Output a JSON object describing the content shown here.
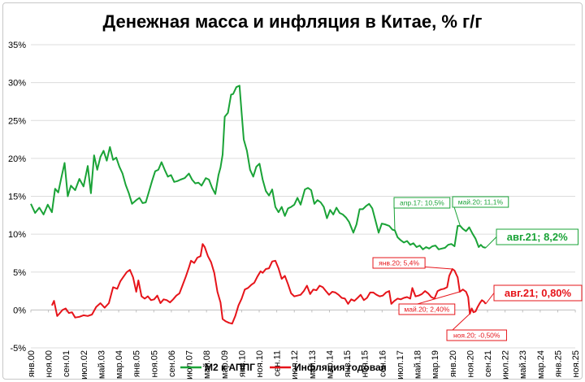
{
  "chart_data": {
    "type": "line",
    "title": "Денежная масса и инфляция в Китае, % г/г",
    "xlabel": "",
    "ylabel": "",
    "ylim": [
      -5,
      35
    ],
    "y_ticks": [
      "-5%",
      "0%",
      "5%",
      "10%",
      "15%",
      "20%",
      "25%",
      "30%",
      "35%"
    ],
    "x_ticks": [
      "янв.00",
      "ноя.00",
      "сен.01",
      "июл.02",
      "май.03",
      "мар.04",
      "янв.05",
      "ноя.05",
      "сен.06",
      "июл.07",
      "май.08",
      "мар.09",
      "янв.10",
      "ноя.10",
      "сен.11",
      "июл.12",
      "май.13",
      "мар.14",
      "янв.15",
      "ноя.15",
      "сен.16",
      "июл.17",
      "май.18",
      "мар.19",
      "янв.20",
      "ноя.20",
      "сен.21",
      "июл.22",
      "май.23",
      "мар.24",
      "янв.25",
      "ноя.25"
    ],
    "grid": true,
    "legend_position": "bottom",
    "series": [
      {
        "name": "М2 к АППГ",
        "color": "#1aa337",
        "points": [
          [
            2000.0,
            14.0
          ],
          [
            2000.2,
            12.8
          ],
          [
            2000.4,
            13.5
          ],
          [
            2000.6,
            12.6
          ],
          [
            2000.8,
            13.9
          ],
          [
            2001.0,
            12.9
          ],
          [
            2001.15,
            16.0
          ],
          [
            2001.3,
            15.5
          ],
          [
            2001.45,
            17.5
          ],
          [
            2001.6,
            19.4
          ],
          [
            2001.75,
            15.0
          ],
          [
            2001.9,
            16.4
          ],
          [
            2002.1,
            15.8
          ],
          [
            2002.3,
            17.3
          ],
          [
            2002.5,
            16.3
          ],
          [
            2002.7,
            19.0
          ],
          [
            2002.85,
            15.4
          ],
          [
            2003.0,
            20.4
          ],
          [
            2003.15,
            18.5
          ],
          [
            2003.3,
            20.2
          ],
          [
            2003.45,
            21.0
          ],
          [
            2003.6,
            19.7
          ],
          [
            2003.75,
            21.5
          ],
          [
            2003.9,
            19.8
          ],
          [
            2004.05,
            20.1
          ],
          [
            2004.2,
            18.9
          ],
          [
            2004.35,
            18.0
          ],
          [
            2004.5,
            16.5
          ],
          [
            2004.65,
            15.4
          ],
          [
            2004.8,
            14.0
          ],
          [
            2005.0,
            14.5
          ],
          [
            2005.15,
            14.8
          ],
          [
            2005.3,
            14.1
          ],
          [
            2005.45,
            14.2
          ],
          [
            2005.6,
            15.6
          ],
          [
            2005.75,
            17.0
          ],
          [
            2005.9,
            18.3
          ],
          [
            2006.05,
            18.5
          ],
          [
            2006.2,
            19.5
          ],
          [
            2006.35,
            18.5
          ],
          [
            2006.5,
            17.6
          ],
          [
            2006.65,
            17.8
          ],
          [
            2006.8,
            16.9
          ],
          [
            2006.95,
            17.0
          ],
          [
            2007.1,
            17.2
          ],
          [
            2007.3,
            17.4
          ],
          [
            2007.5,
            18.0
          ],
          [
            2007.65,
            17.2
          ],
          [
            2007.8,
            16.7
          ],
          [
            2007.95,
            16.8
          ],
          [
            2008.1,
            16.4
          ],
          [
            2008.3,
            17.4
          ],
          [
            2008.45,
            17.2
          ],
          [
            2008.6,
            16.1
          ],
          [
            2008.75,
            15.3
          ],
          [
            2008.9,
            17.8
          ],
          [
            2009.0,
            18.8
          ],
          [
            2009.1,
            20.5
          ],
          [
            2009.2,
            25.5
          ],
          [
            2009.35,
            26.0
          ],
          [
            2009.5,
            28.4
          ],
          [
            2009.6,
            28.5
          ],
          [
            2009.75,
            29.4
          ],
          [
            2009.9,
            29.6
          ],
          [
            2010.0,
            26.0
          ],
          [
            2010.1,
            22.5
          ],
          [
            2010.25,
            21.0
          ],
          [
            2010.4,
            18.5
          ],
          [
            2010.55,
            17.6
          ],
          [
            2010.7,
            18.9
          ],
          [
            2010.85,
            19.3
          ],
          [
            2011.0,
            17.2
          ],
          [
            2011.15,
            15.7
          ],
          [
            2011.3,
            15.1
          ],
          [
            2011.45,
            15.9
          ],
          [
            2011.6,
            13.6
          ],
          [
            2011.75,
            12.9
          ],
          [
            2011.9,
            13.6
          ],
          [
            2012.05,
            12.4
          ],
          [
            2012.2,
            13.4
          ],
          [
            2012.35,
            13.6
          ],
          [
            2012.5,
            13.9
          ],
          [
            2012.65,
            14.8
          ],
          [
            2012.8,
            13.9
          ],
          [
            2013.0,
            15.9
          ],
          [
            2013.15,
            16.1
          ],
          [
            2013.3,
            15.8
          ],
          [
            2013.45,
            14.0
          ],
          [
            2013.6,
            14.5
          ],
          [
            2013.75,
            14.2
          ],
          [
            2013.9,
            13.6
          ],
          [
            2014.05,
            12.1
          ],
          [
            2014.2,
            13.2
          ],
          [
            2014.35,
            12.6
          ],
          [
            2014.5,
            13.5
          ],
          [
            2014.65,
            12.8
          ],
          [
            2014.8,
            12.6
          ],
          [
            2014.95,
            12.2
          ],
          [
            2015.1,
            11.6
          ],
          [
            2015.3,
            10.2
          ],
          [
            2015.45,
            11.3
          ],
          [
            2015.6,
            13.3
          ],
          [
            2015.75,
            13.3
          ],
          [
            2015.9,
            13.7
          ],
          [
            2016.05,
            14.0
          ],
          [
            2016.2,
            13.4
          ],
          [
            2016.35,
            11.8
          ],
          [
            2016.5,
            10.2
          ],
          [
            2016.65,
            11.4
          ],
          [
            2016.8,
            11.3
          ],
          [
            2017.0,
            11.1
          ],
          [
            2017.15,
            10.6
          ],
          [
            2017.27,
            10.5
          ],
          [
            2017.4,
            9.6
          ],
          [
            2017.55,
            9.2
          ],
          [
            2017.7,
            8.9
          ],
          [
            2017.85,
            9.1
          ],
          [
            2018.0,
            8.6
          ],
          [
            2018.15,
            8.8
          ],
          [
            2018.3,
            8.3
          ],
          [
            2018.45,
            8.5
          ],
          [
            2018.6,
            8.0
          ],
          [
            2018.75,
            8.3
          ],
          [
            2018.9,
            8.1
          ],
          [
            2019.05,
            8.4
          ],
          [
            2019.2,
            8.5
          ],
          [
            2019.35,
            8.0
          ],
          [
            2019.5,
            8.1
          ],
          [
            2019.65,
            8.2
          ],
          [
            2019.8,
            8.6
          ],
          [
            2019.95,
            8.7
          ],
          [
            2020.1,
            8.4
          ],
          [
            2020.25,
            11.1
          ],
          [
            2020.37,
            11.1
          ],
          [
            2020.5,
            10.7
          ],
          [
            2020.65,
            10.4
          ],
          [
            2020.8,
            10.9
          ],
          [
            2020.95,
            10.1
          ],
          [
            2021.1,
            9.4
          ],
          [
            2021.25,
            8.3
          ],
          [
            2021.35,
            8.6
          ],
          [
            2021.45,
            8.3
          ],
          [
            2021.58,
            8.2
          ]
        ],
        "last_label": "авг.21; 8,2%",
        "annotations": [
          "апр.17; 10,5%",
          "май.20; 11,1%"
        ]
      },
      {
        "name": "Инфляция годовая",
        "color": "#e6141a",
        "points": [
          [
            2001.0,
            0.6
          ],
          [
            2001.1,
            1.2
          ],
          [
            2001.25,
            -0.8
          ],
          [
            2001.35,
            -0.5
          ],
          [
            2001.5,
            0.0
          ],
          [
            2001.65,
            0.2
          ],
          [
            2001.8,
            -0.4
          ],
          [
            2001.95,
            -0.3
          ],
          [
            2002.1,
            -1.0
          ],
          [
            2002.3,
            -0.9
          ],
          [
            2002.5,
            -0.7
          ],
          [
            2002.7,
            -0.8
          ],
          [
            2002.9,
            -0.6
          ],
          [
            2003.1,
            0.4
          ],
          [
            2003.3,
            0.9
          ],
          [
            2003.5,
            0.3
          ],
          [
            2003.7,
            0.9
          ],
          [
            2003.9,
            3.0
          ],
          [
            2004.1,
            2.8
          ],
          [
            2004.25,
            3.8
          ],
          [
            2004.4,
            4.4
          ],
          [
            2004.55,
            5.0
          ],
          [
            2004.7,
            5.3
          ],
          [
            2004.85,
            4.3
          ],
          [
            2005.0,
            2.4
          ],
          [
            2005.1,
            3.9
          ],
          [
            2005.25,
            1.8
          ],
          [
            2005.4,
            1.5
          ],
          [
            2005.55,
            1.8
          ],
          [
            2005.7,
            1.3
          ],
          [
            2005.85,
            1.4
          ],
          [
            2006.0,
            1.9
          ],
          [
            2006.15,
            0.9
          ],
          [
            2006.3,
            1.4
          ],
          [
            2006.45,
            1.3
          ],
          [
            2006.6,
            1.0
          ],
          [
            2006.75,
            1.4
          ],
          [
            2006.9,
            1.9
          ],
          [
            2007.05,
            2.2
          ],
          [
            2007.2,
            3.3
          ],
          [
            2007.35,
            4.4
          ],
          [
            2007.5,
            5.6
          ],
          [
            2007.6,
            6.5
          ],
          [
            2007.75,
            6.2
          ],
          [
            2007.9,
            6.9
          ],
          [
            2008.05,
            7.1
          ],
          [
            2008.15,
            8.7
          ],
          [
            2008.25,
            8.3
          ],
          [
            2008.4,
            7.1
          ],
          [
            2008.55,
            6.3
          ],
          [
            2008.7,
            4.9
          ],
          [
            2008.85,
            2.4
          ],
          [
            2009.0,
            1.0
          ],
          [
            2009.1,
            -1.2
          ],
          [
            2009.25,
            -1.5
          ],
          [
            2009.4,
            -1.7
          ],
          [
            2009.55,
            -1.8
          ],
          [
            2009.7,
            -0.8
          ],
          [
            2009.85,
            0.6
          ],
          [
            2010.0,
            1.5
          ],
          [
            2010.15,
            2.7
          ],
          [
            2010.3,
            2.9
          ],
          [
            2010.45,
            3.3
          ],
          [
            2010.6,
            3.6
          ],
          [
            2010.75,
            4.4
          ],
          [
            2010.9,
            5.1
          ],
          [
            2011.0,
            4.9
          ],
          [
            2011.15,
            5.4
          ],
          [
            2011.3,
            5.5
          ],
          [
            2011.45,
            6.4
          ],
          [
            2011.6,
            6.5
          ],
          [
            2011.75,
            5.5
          ],
          [
            2011.9,
            4.1
          ],
          [
            2012.05,
            4.5
          ],
          [
            2012.2,
            3.4
          ],
          [
            2012.35,
            2.2
          ],
          [
            2012.5,
            1.8
          ],
          [
            2012.65,
            1.9
          ],
          [
            2012.8,
            2.0
          ],
          [
            2012.95,
            2.5
          ],
          [
            2013.1,
            3.2
          ],
          [
            2013.25,
            2.1
          ],
          [
            2013.4,
            2.7
          ],
          [
            2013.55,
            2.6
          ],
          [
            2013.7,
            3.2
          ],
          [
            2013.85,
            3.0
          ],
          [
            2014.0,
            2.5
          ],
          [
            2014.15,
            2.0
          ],
          [
            2014.3,
            2.4
          ],
          [
            2014.45,
            2.3
          ],
          [
            2014.6,
            2.0
          ],
          [
            2014.75,
            1.6
          ],
          [
            2014.9,
            1.5
          ],
          [
            2015.05,
            0.8
          ],
          [
            2015.2,
            1.4
          ],
          [
            2015.35,
            1.2
          ],
          [
            2015.5,
            1.6
          ],
          [
            2015.65,
            2.0
          ],
          [
            2015.8,
            1.3
          ],
          [
            2015.95,
            1.6
          ],
          [
            2016.1,
            2.3
          ],
          [
            2016.25,
            2.3
          ],
          [
            2016.4,
            2.0
          ],
          [
            2016.55,
            1.8
          ],
          [
            2016.7,
            1.9
          ],
          [
            2016.85,
            2.3
          ],
          [
            2017.0,
            2.5
          ],
          [
            2017.1,
            0.8
          ],
          [
            2017.25,
            1.2
          ],
          [
            2017.4,
            1.5
          ],
          [
            2017.55,
            1.4
          ],
          [
            2017.7,
            1.6
          ],
          [
            2017.85,
            1.7
          ],
          [
            2018.0,
            1.5
          ],
          [
            2018.1,
            2.9
          ],
          [
            2018.25,
            1.8
          ],
          [
            2018.4,
            1.9
          ],
          [
            2018.55,
            2.1
          ],
          [
            2018.7,
            2.5
          ],
          [
            2018.85,
            2.2
          ],
          [
            2019.0,
            1.7
          ],
          [
            2019.15,
            1.5
          ],
          [
            2019.3,
            2.5
          ],
          [
            2019.45,
            2.7
          ],
          [
            2019.6,
            2.8
          ],
          [
            2019.75,
            3.0
          ],
          [
            2019.85,
            4.5
          ],
          [
            2020.0,
            5.4
          ],
          [
            2020.1,
            5.2
          ],
          [
            2020.25,
            4.3
          ],
          [
            2020.35,
            2.4
          ],
          [
            2020.5,
            2.7
          ],
          [
            2020.65,
            2.4
          ],
          [
            2020.75,
            1.7
          ],
          [
            2020.83,
            -0.5
          ],
          [
            2020.92,
            0.2
          ],
          [
            2021.0,
            -0.3
          ],
          [
            2021.1,
            -0.2
          ],
          [
            2021.2,
            0.4
          ],
          [
            2021.3,
            0.9
          ],
          [
            2021.4,
            1.3
          ],
          [
            2021.5,
            1.1
          ],
          [
            2021.58,
            0.8
          ]
        ],
        "last_label": "авг.21; 0,80%",
        "annotations": [
          "янв.20; 5,4%",
          "май.20; 2,40%",
          "ноя.20; -0,50%"
        ]
      }
    ]
  }
}
